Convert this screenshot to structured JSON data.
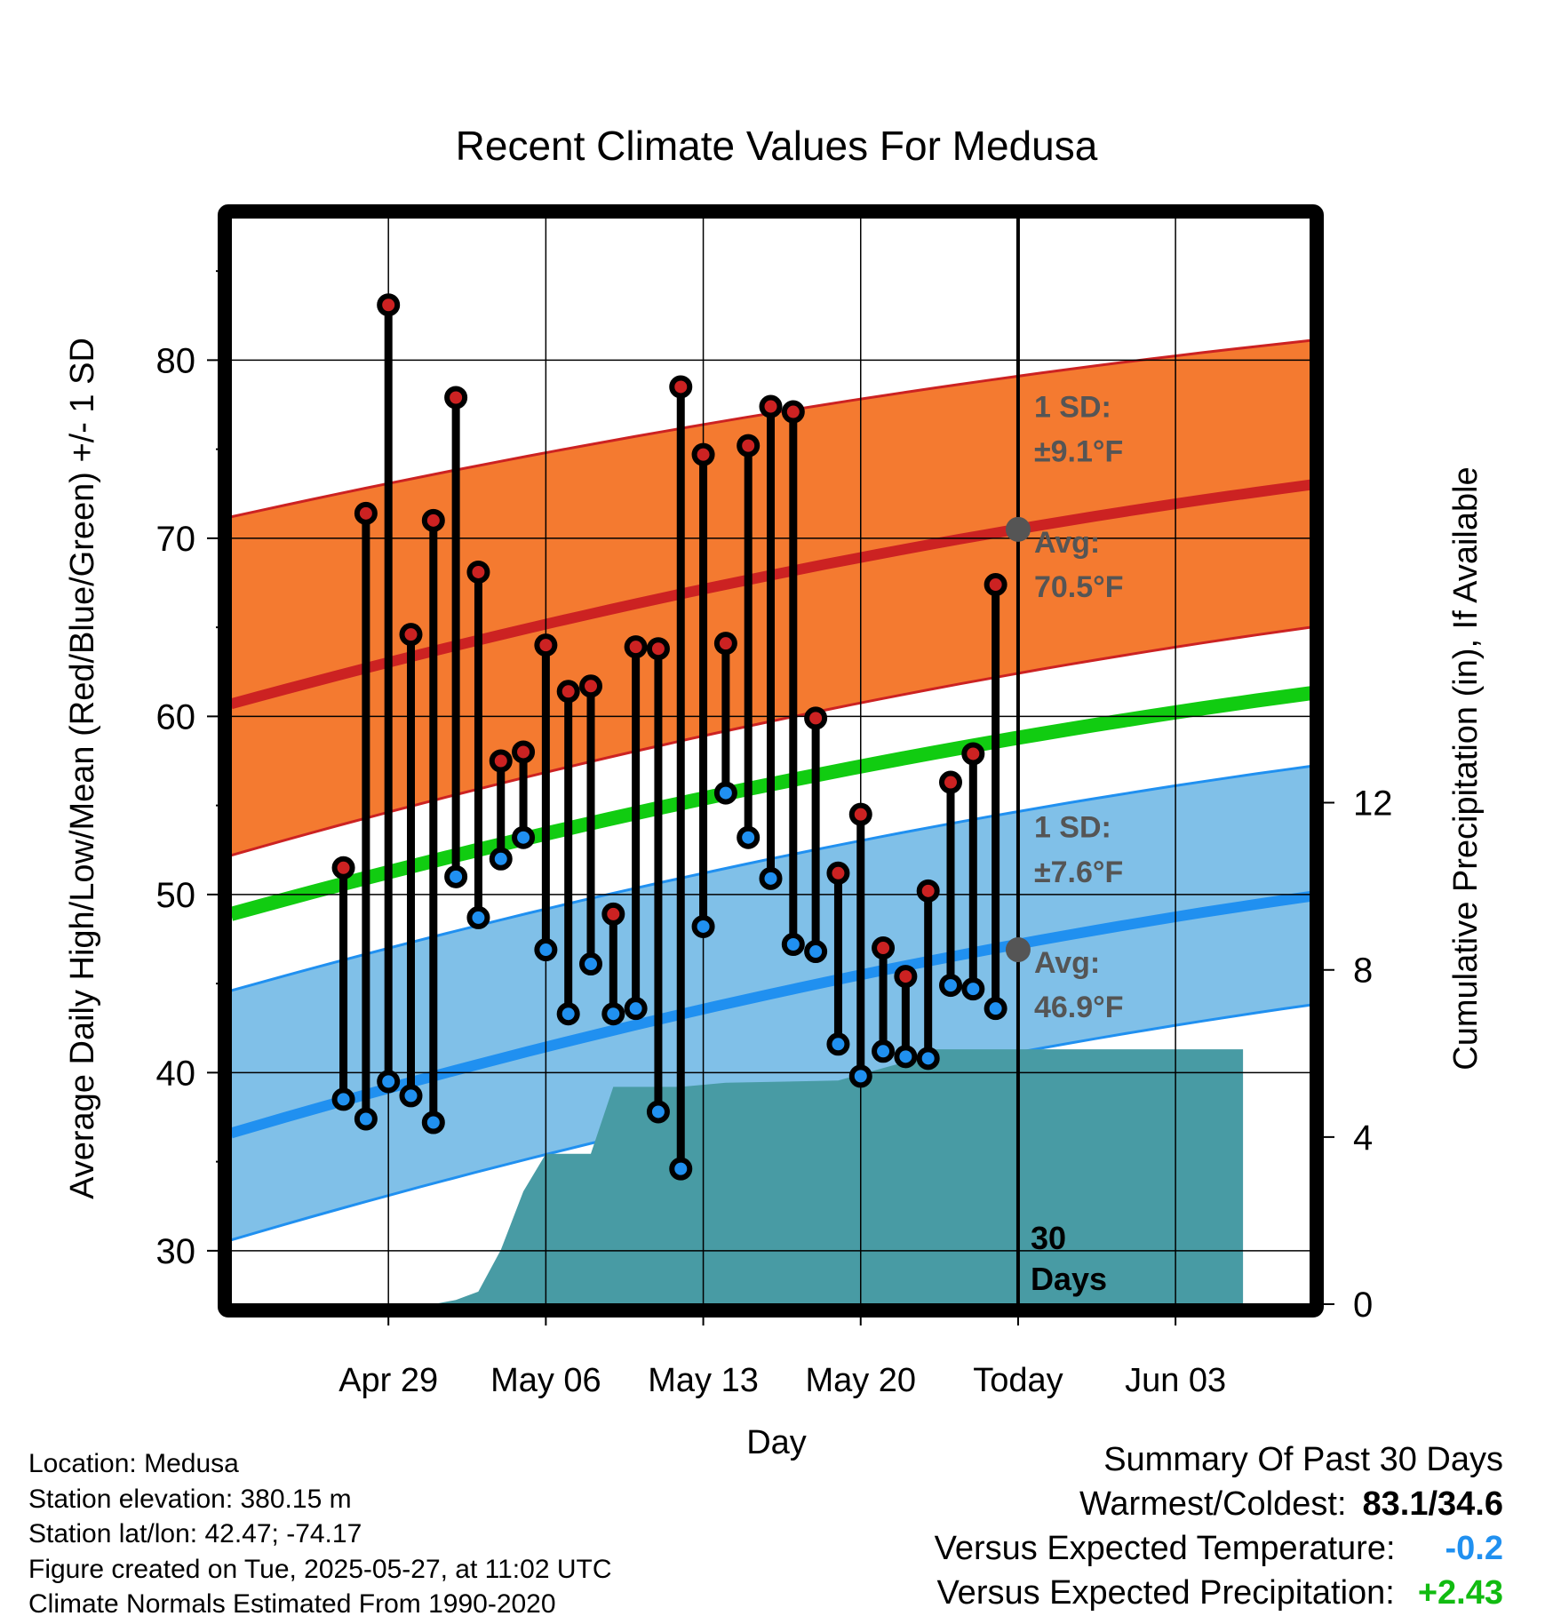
{
  "chart_data": {
    "type": "line",
    "title": "Recent Climate Values For Medusa",
    "xlabel": "Day",
    "ylabel": "Average Daily High/Low/Mean (Red/Blue/Green) +/- 1 SD",
    "y2label": "Cumulative Precipitation (in), If Available",
    "xlim_days": [
      -35,
      13
    ],
    "ylim": [
      27,
      88
    ],
    "y2lim": [
      0,
      26
    ],
    "x_ticks": [
      {
        "day": -28,
        "label": "Apr 29"
      },
      {
        "day": -21,
        "label": "May 06"
      },
      {
        "day": -14,
        "label": "May 13"
      },
      {
        "day": -7,
        "label": "May 20"
      },
      {
        "day": 0,
        "label": "Today"
      },
      {
        "day": 7,
        "label": "Jun 03"
      }
    ],
    "y_ticks": [
      30,
      40,
      50,
      60,
      70,
      80
    ],
    "y2_ticks": [
      0,
      4,
      8,
      12
    ],
    "grid": true,
    "normals": {
      "high_avg": {
        "start": 60.7,
        "end": 73.0
      },
      "high_sd_upper": {
        "start": 71.2,
        "end": 81.1
      },
      "high_sd_lower": {
        "start": 52.2,
        "end": 65.0
      },
      "mean": {
        "start": 48.9,
        "end": 61.3
      },
      "low_avg": {
        "start": 36.6,
        "end": 49.9
      },
      "low_sd_upper": {
        "start": 44.6,
        "end": 57.2
      },
      "low_sd_lower": {
        "start": 30.6,
        "end": 43.8
      }
    },
    "daily": [
      {
        "day": -30,
        "high": 51.5,
        "low": 38.5
      },
      {
        "day": -29,
        "high": 71.4,
        "low": 37.4
      },
      {
        "day": -28,
        "high": 83.1,
        "low": 39.5
      },
      {
        "day": -27,
        "high": 64.6,
        "low": 38.7
      },
      {
        "day": -26,
        "high": 71.0,
        "low": 37.2
      },
      {
        "day": -25,
        "high": 77.9,
        "low": 51.0
      },
      {
        "day": -24,
        "high": 68.1,
        "low": 48.7
      },
      {
        "day": -23,
        "high": 57.5,
        "low": 52.0
      },
      {
        "day": -22,
        "high": 58.0,
        "low": 53.2
      },
      {
        "day": -21,
        "high": 64.0,
        "low": 46.9
      },
      {
        "day": -20,
        "high": 61.4,
        "low": 43.3
      },
      {
        "day": -19,
        "high": 61.7,
        "low": 46.1
      },
      {
        "day": -18,
        "high": 48.9,
        "low": 43.3
      },
      {
        "day": -17,
        "high": 63.9,
        "low": 43.6
      },
      {
        "day": -16,
        "high": 63.8,
        "low": 37.8
      },
      {
        "day": -15,
        "high": 78.5,
        "low": 34.6
      },
      {
        "day": -14,
        "high": 74.7,
        "low": 48.2
      },
      {
        "day": -13,
        "high": 64.1,
        "low": 55.7
      },
      {
        "day": -12,
        "high": 75.2,
        "low": 53.2
      },
      {
        "day": -11,
        "high": 77.4,
        "low": 50.9
      },
      {
        "day": -10,
        "high": 77.1,
        "low": 47.2
      },
      {
        "day": -9,
        "high": 59.9,
        "low": 46.8
      },
      {
        "day": -8,
        "high": 51.2,
        "low": 41.6
      },
      {
        "day": -7,
        "high": 54.5,
        "low": 39.8
      },
      {
        "day": -6,
        "high": 47.0,
        "low": 41.2
      },
      {
        "day": -5,
        "high": 45.4,
        "low": 40.9
      },
      {
        "day": -4,
        "high": 50.2,
        "low": 40.8
      },
      {
        "day": -3,
        "high": 56.3,
        "low": 44.9
      },
      {
        "day": -2,
        "high": 57.9,
        "low": 44.7
      },
      {
        "day": -1,
        "high": 67.4,
        "low": 43.6
      }
    ],
    "precip_cumulative": [
      {
        "day": -28,
        "value": 0.0
      },
      {
        "day": -26,
        "value": 0.0
      },
      {
        "day": -25,
        "value": 0.1
      },
      {
        "day": -24,
        "value": 0.3
      },
      {
        "day": -23,
        "value": 1.3
      },
      {
        "day": -22,
        "value": 2.7
      },
      {
        "day": -21,
        "value": 3.6
      },
      {
        "day": -19,
        "value": 3.6
      },
      {
        "day": -18,
        "value": 5.2
      },
      {
        "day": -15,
        "value": 5.2
      },
      {
        "day": -13,
        "value": 5.3
      },
      {
        "day": -8,
        "value": 5.35
      },
      {
        "day": -7,
        "value": 5.5
      },
      {
        "day": -5,
        "value": 5.8
      },
      {
        "day": -4,
        "value": 6.1
      },
      {
        "day": 10,
        "value": 6.1
      }
    ],
    "today_marker": {
      "day": 0,
      "label_number": "30",
      "label_word": "Days"
    },
    "annotations": {
      "high_sd": {
        "line1": "1 SD:",
        "line2": "±9.1°F"
      },
      "high_avg": {
        "line1": "Avg:",
        "line2": "70.5°F",
        "value": 70.5
      },
      "low_sd": {
        "line1": "1 SD:",
        "line2": "±7.6°F"
      },
      "low_avg": {
        "line1": "Avg:",
        "line2": "46.9°F",
        "value": 46.9
      }
    },
    "colors": {
      "high_band": "#f47a30",
      "high_line": "#cc2222",
      "low_band": "#80c0e8",
      "low_line": "#2090f0",
      "mean_line": "#11cc11",
      "precip": "#489ba4",
      "high_dot": "#cc2222",
      "low_dot": "#2090f0",
      "annotation": "#555555"
    }
  },
  "footer": {
    "location": "Location: Medusa",
    "elevation": "Station elevation: 380.15 m",
    "latlon": "Station lat/lon: 42.47; -74.17",
    "created": "Figure created on Tue, 2025-05-27, at 11:02 UTC",
    "normals": "Climate Normals Estimated From 1990-2020"
  },
  "summary": {
    "title": "Summary Of Past 30 Days",
    "warmest_label": "Warmest/Coldest:",
    "warmest_value": "83.1/34.6",
    "temp_label": "Versus Expected Temperature:",
    "temp_value": "-0.2",
    "temp_color": "#2090f0",
    "precip_label": "Versus Expected Precipitation:",
    "precip_value": "+2.43",
    "precip_color": "#11bb11"
  }
}
